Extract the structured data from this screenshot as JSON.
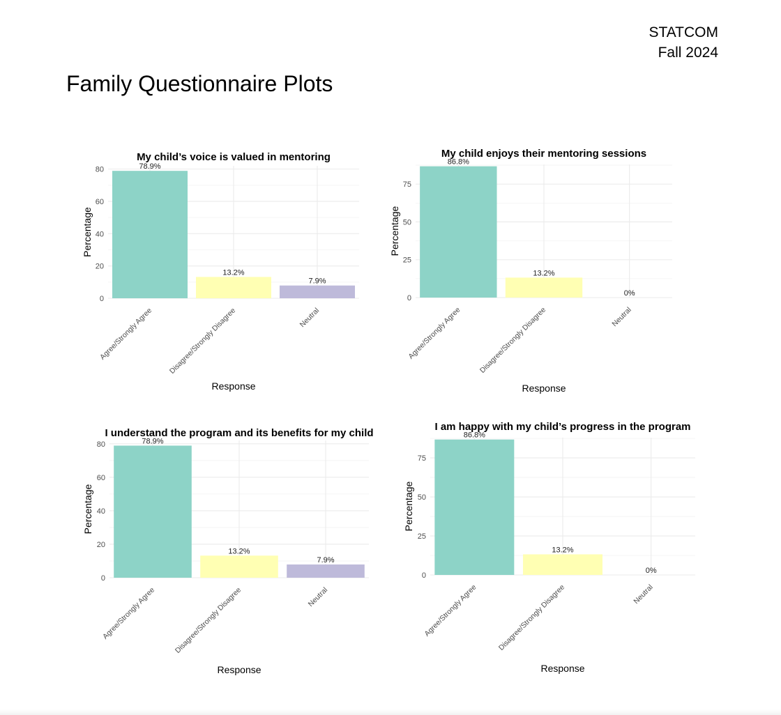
{
  "header": {
    "org": "STATCOM",
    "term": "Fall 2024"
  },
  "page_title": "Family Questionnaire Plots",
  "colors": {
    "Agree/Strongly Agree": "#8DD3C7",
    "Disagree/Strongly Disagree": "#FFFFB3",
    "Neutral": "#BEBADA",
    "grid": "#ebebeb"
  },
  "chart_data": [
    {
      "type": "bar",
      "title": "My child’s voice is valued in mentoring",
      "xlabel": "Response",
      "ylabel": "Percentage",
      "categories": [
        "Agree/Strongly Agree",
        "Disagree/Strongly Disagree",
        "Neutral"
      ],
      "values": [
        78.9,
        13.2,
        7.9
      ],
      "labels": [
        "78.9%",
        "13.2%",
        "7.9%"
      ],
      "yticks": [
        0,
        20,
        40,
        60,
        80
      ],
      "ylim": [
        0,
        82
      ],
      "grid": true
    },
    {
      "type": "bar",
      "title": "My child enjoys their mentoring sessions",
      "xlabel": "Response",
      "ylabel": "Percentage",
      "categories": [
        "Agree/Strongly Agree",
        "Disagree/Strongly Disagree",
        "Neutral"
      ],
      "values": [
        86.8,
        13.2,
        0
      ],
      "labels": [
        "86.8%",
        "13.2%",
        "0%"
      ],
      "yticks": [
        0,
        25,
        50,
        75
      ],
      "ylim": [
        0,
        88
      ],
      "grid": true
    },
    {
      "type": "bar",
      "title": "I understand the program and its benefits for my child",
      "xlabel": "Response",
      "ylabel": "Percentage",
      "categories": [
        "Agree/Strongly Agree",
        "Disagree/Strongly Disagree",
        "Neutral"
      ],
      "values": [
        78.9,
        13.2,
        7.9
      ],
      "labels": [
        "78.9%",
        "13.2%",
        "7.9%"
      ],
      "yticks": [
        0,
        20,
        40,
        60,
        80
      ],
      "ylim": [
        0,
        82
      ],
      "grid": true
    },
    {
      "type": "bar",
      "title": "I am happy with my child’s progress in the program",
      "xlabel": "Response",
      "ylabel": "Percentage",
      "categories": [
        "Agree/Strongly Agree",
        "Disagree/Strongly Disagree",
        "Neutral"
      ],
      "values": [
        86.8,
        13.2,
        0
      ],
      "labels": [
        "86.8%",
        "13.2%",
        "0%"
      ],
      "yticks": [
        0,
        25,
        50,
        75
      ],
      "ylim": [
        0,
        88
      ],
      "grid": true
    }
  ]
}
